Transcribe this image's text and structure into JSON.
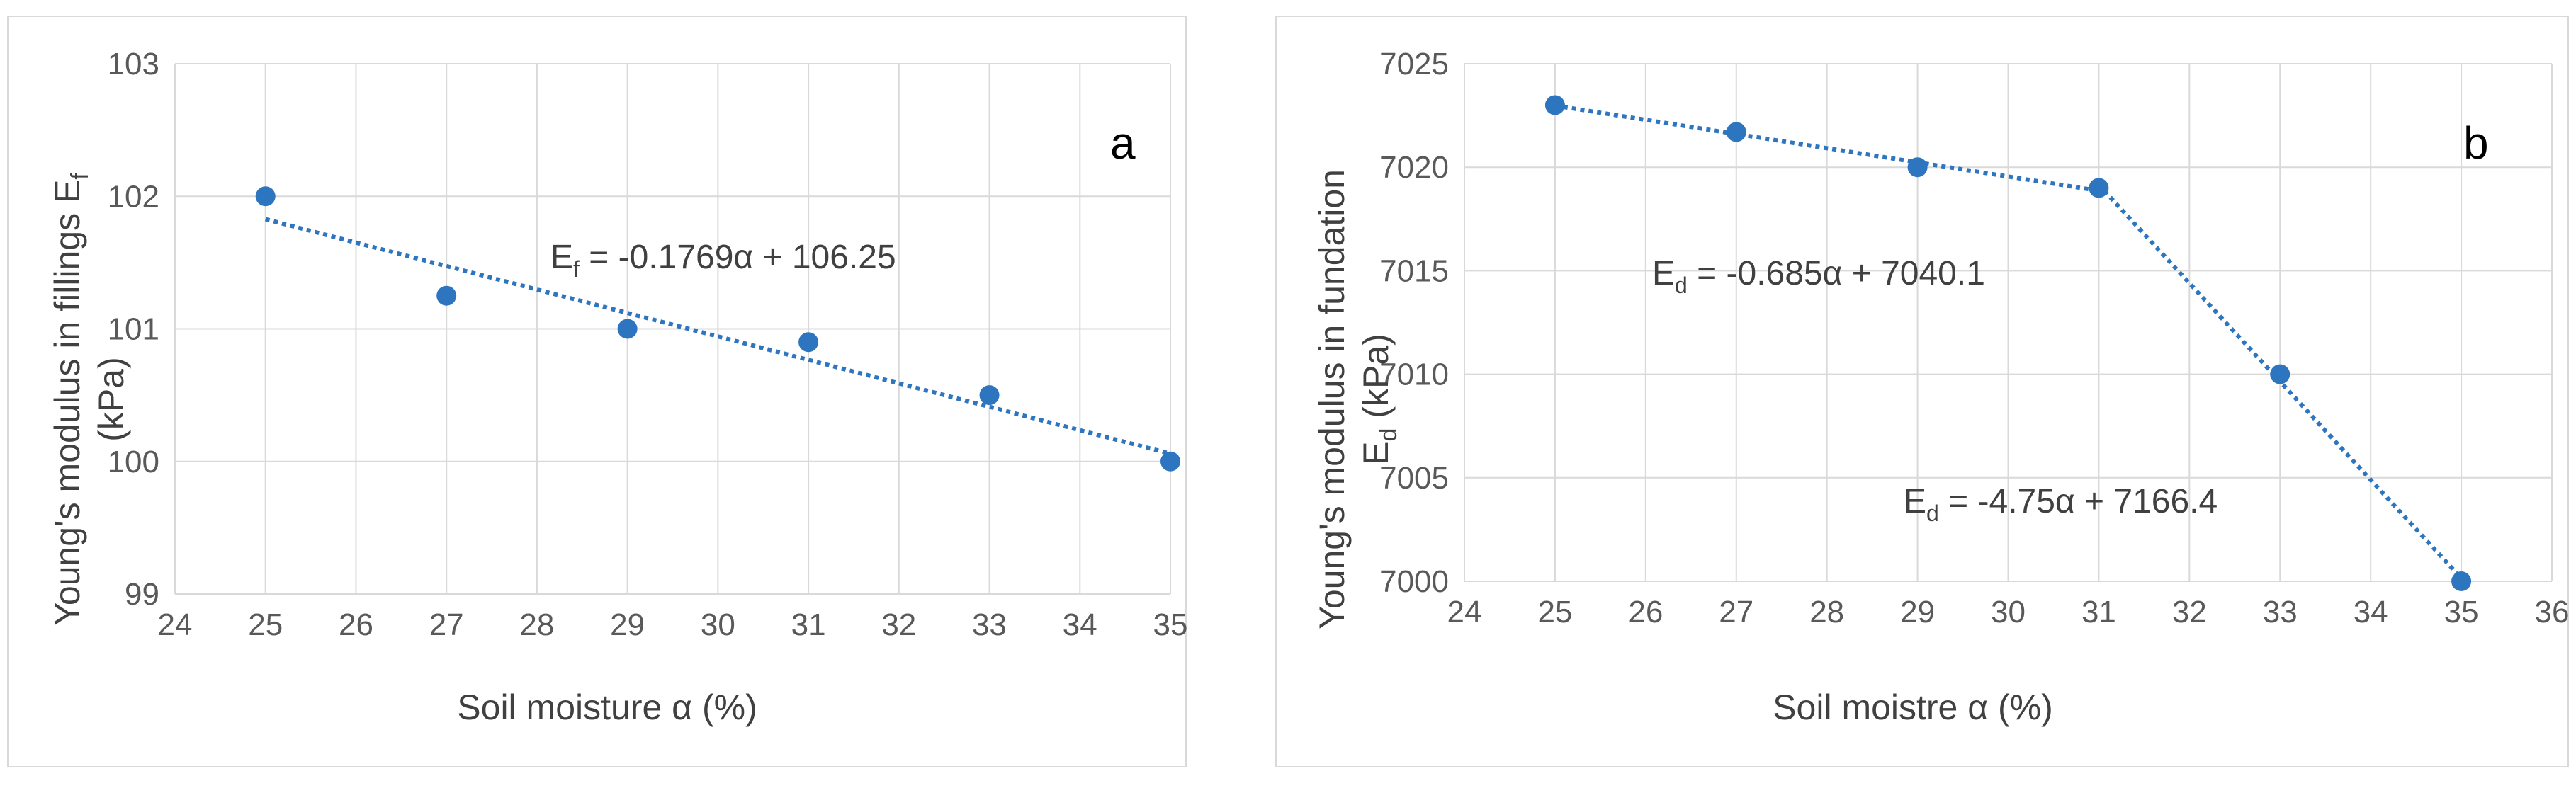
{
  "chart_data": [
    {
      "type": "scatter",
      "panel_letter": "a",
      "xlabel": "Soil moisture α (%)",
      "ylabel_line1": "Young's modulus in fillings E",
      "ylabel_line1_sub": "f",
      "ylabel_line2": "(kPa)",
      "xlim": [
        24,
        35
      ],
      "ylim": [
        99,
        103
      ],
      "x_ticks": [
        24,
        25,
        26,
        27,
        28,
        29,
        30,
        31,
        32,
        33,
        34,
        35
      ],
      "y_ticks": [
        99,
        100,
        101,
        102,
        103
      ],
      "grid": true,
      "marker_color": "#2e75c0",
      "series": [
        {
          "x": [
            25,
            27,
            29,
            31,
            33,
            35
          ],
          "y": [
            102,
            101.25,
            101,
            100.9,
            100.5,
            100
          ]
        }
      ],
      "trendlines": [
        {
          "slope": -0.1769,
          "intercept": 106.25,
          "x_range": [
            25,
            35
          ],
          "label_main": "E",
          "label_sub": "f",
          "label_rest": " = -0.1769α + 106.25"
        }
      ]
    },
    {
      "type": "scatter",
      "panel_letter": "b",
      "xlabel": "Soil moistre α (%)",
      "ylabel_line1": "Young's modulus in fundation",
      "ylabel_line2": "E",
      "ylabel_line2_sub": "d",
      "ylabel_line2_rest": " (kPa)",
      "xlim": [
        24,
        36
      ],
      "ylim": [
        7000,
        7025
      ],
      "x_ticks": [
        24,
        25,
        26,
        27,
        28,
        29,
        30,
        31,
        32,
        33,
        34,
        35,
        36
      ],
      "y_ticks": [
        7000,
        7005,
        7010,
        7015,
        7020,
        7025
      ],
      "grid": true,
      "marker_color": "#2e75c0",
      "series": [
        {
          "x": [
            25,
            27,
            29,
            31,
            33,
            35
          ],
          "y": [
            7023,
            7021.7,
            7020,
            7019,
            7010,
            7000
          ]
        }
      ],
      "trendlines": [
        {
          "slope": -0.685,
          "intercept": 7040.1,
          "x_range": [
            25,
            31
          ],
          "label_main": "E",
          "label_sub": "d",
          "label_rest": " = -0.685α + 7040.1"
        },
        {
          "slope": -4.75,
          "intercept": 7166.4,
          "x_range": [
            31,
            35
          ],
          "label_main": "E",
          "label_sub": "d",
          "label_rest": " = -4.75α + 7166.4"
        }
      ]
    }
  ]
}
